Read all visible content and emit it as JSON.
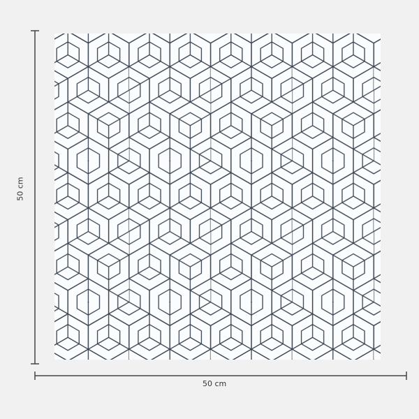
{
  "product": {
    "width_label": "50 cm",
    "height_label": "50 cm",
    "pattern": "geometric-isometric-cube-lines",
    "line_color": "#3a4450",
    "tile_color": "#fbfcfd",
    "background_color": "#f1f1f1"
  }
}
